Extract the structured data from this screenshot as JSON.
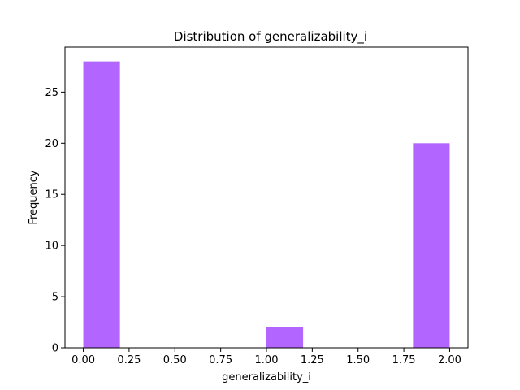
{
  "chart_data": {
    "type": "bar",
    "title": "Distribution of  generalizability_i",
    "xlabel": "generalizability_i",
    "ylabel": "Frequency",
    "bins": [
      {
        "x0": 0.0,
        "x1": 0.2,
        "count": 28
      },
      {
        "x0": 0.2,
        "x1": 0.4,
        "count": 0
      },
      {
        "x0": 0.4,
        "x1": 0.6,
        "count": 0
      },
      {
        "x0": 0.6,
        "x1": 0.8,
        "count": 0
      },
      {
        "x0": 0.8,
        "x1": 1.0,
        "count": 0
      },
      {
        "x0": 1.0,
        "x1": 1.2,
        "count": 2
      },
      {
        "x0": 1.2,
        "x1": 1.4,
        "count": 0
      },
      {
        "x0": 1.4,
        "x1": 1.6,
        "count": 0
      },
      {
        "x0": 1.6,
        "x1": 1.8,
        "count": 0
      },
      {
        "x0": 1.8,
        "x1": 2.0,
        "count": 20
      }
    ],
    "xlim": [
      -0.1,
      2.1
    ],
    "ylim": [
      0,
      29.4
    ],
    "xticks": [
      "0.00",
      "0.25",
      "0.50",
      "0.75",
      "1.00",
      "1.25",
      "1.50",
      "1.75",
      "2.00"
    ],
    "yticks": [
      "0",
      "5",
      "10",
      "15",
      "20",
      "25"
    ],
    "bar_color": "#b266ff",
    "grid": false
  }
}
